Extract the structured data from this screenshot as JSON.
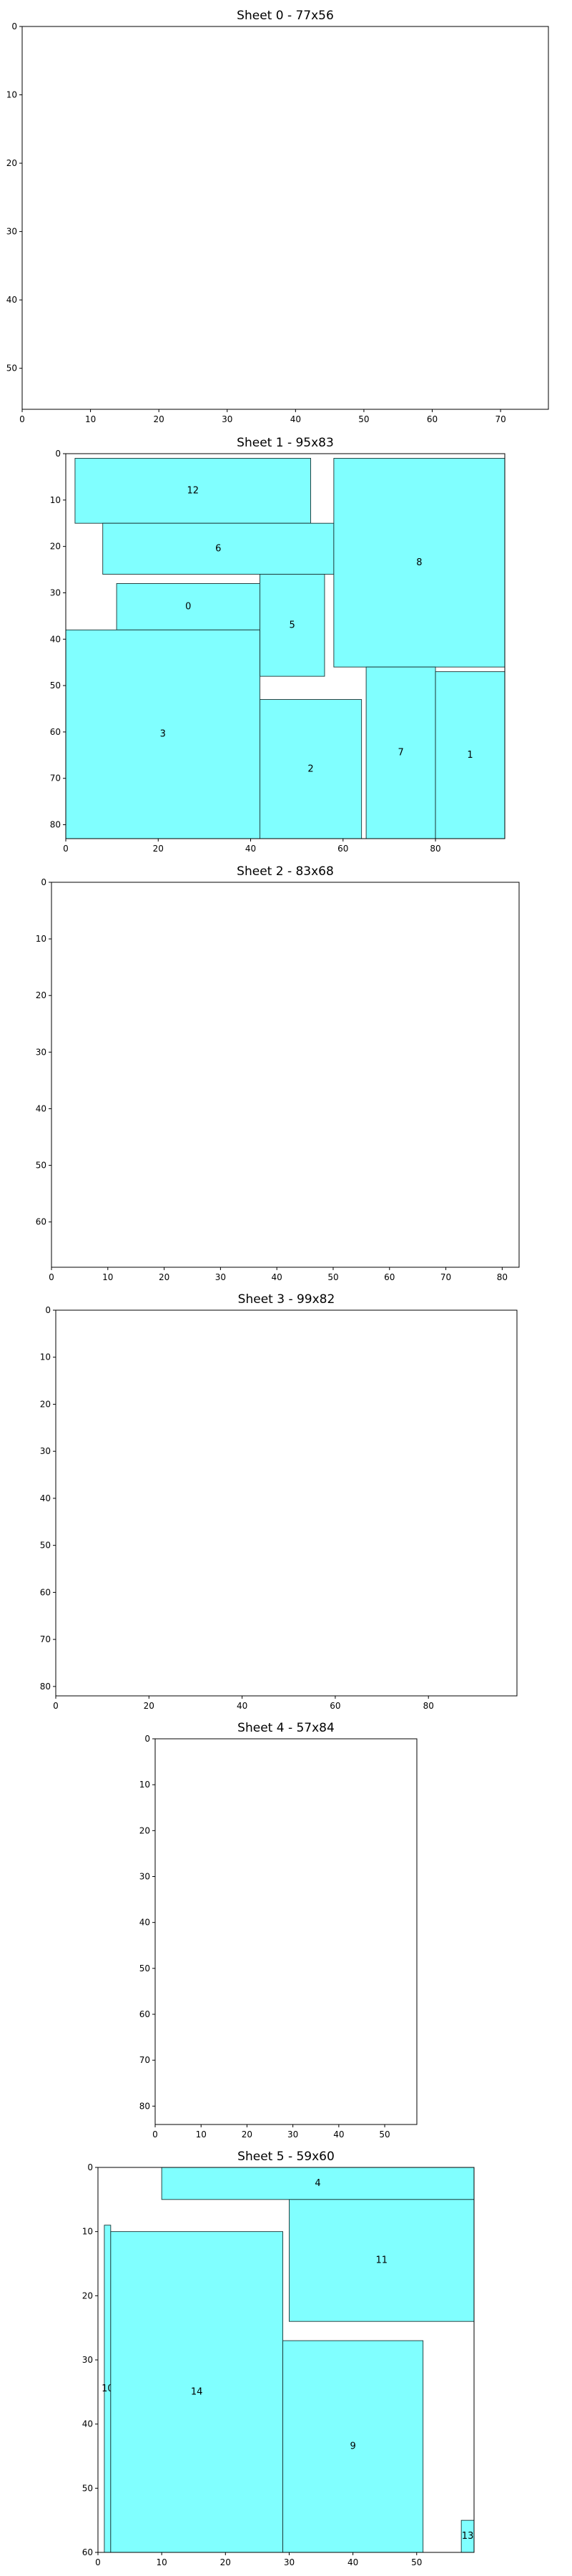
{
  "chart_data": [
    {
      "type": "rectangle-packing",
      "title": "Sheet 0 - 77x56",
      "xlim": [
        0,
        77
      ],
      "ylim": [
        56,
        0
      ],
      "x_ticks": [
        0,
        10,
        20,
        30,
        40,
        50,
        60,
        70
      ],
      "y_ticks": [
        0,
        10,
        20,
        30,
        40,
        50
      ],
      "rects": []
    },
    {
      "type": "rectangle-packing",
      "title": "Sheet 1 - 95x83",
      "xlim": [
        0,
        95
      ],
      "ylim": [
        83,
        0
      ],
      "x_ticks": [
        0,
        20,
        40,
        60,
        80
      ],
      "y_ticks": [
        0,
        10,
        20,
        30,
        40,
        50,
        60,
        70,
        80
      ],
      "rects": [
        {
          "label": "12",
          "x": 2,
          "y": 1,
          "w": 51,
          "h": 14
        },
        {
          "label": "6",
          "x": 8,
          "y": 15,
          "w": 50,
          "h": 11
        },
        {
          "label": "8",
          "x": 58,
          "y": 1,
          "w": 37,
          "h": 45
        },
        {
          "label": "0",
          "x": 11,
          "y": 28,
          "w": 31,
          "h": 10
        },
        {
          "label": "5",
          "x": 42,
          "y": 26,
          "w": 14,
          "h": 22
        },
        {
          "label": "3",
          "x": 0,
          "y": 38,
          "w": 42,
          "h": 45
        },
        {
          "label": "2",
          "x": 42,
          "y": 53,
          "w": 22,
          "h": 30
        },
        {
          "label": "7",
          "x": 65,
          "y": 46,
          "w": 15,
          "h": 37
        },
        {
          "label": "1",
          "x": 80,
          "y": 47,
          "w": 15,
          "h": 36
        }
      ]
    },
    {
      "type": "rectangle-packing",
      "title": "Sheet 2 - 83x68",
      "xlim": [
        0,
        83
      ],
      "ylim": [
        68,
        0
      ],
      "x_ticks": [
        0,
        10,
        20,
        30,
        40,
        50,
        60,
        70,
        80
      ],
      "y_ticks": [
        0,
        10,
        20,
        30,
        40,
        50,
        60
      ],
      "rects": []
    },
    {
      "type": "rectangle-packing",
      "title": "Sheet 3 - 99x82",
      "xlim": [
        0,
        99
      ],
      "ylim": [
        82,
        0
      ],
      "x_ticks": [
        0,
        20,
        40,
        60,
        80
      ],
      "y_ticks": [
        0,
        10,
        20,
        30,
        40,
        50,
        60,
        70,
        80
      ],
      "rects": []
    },
    {
      "type": "rectangle-packing",
      "title": "Sheet 4 - 57x84",
      "xlim": [
        0,
        57
      ],
      "ylim": [
        84,
        0
      ],
      "x_ticks": [
        0,
        10,
        20,
        30,
        40,
        50
      ],
      "y_ticks": [
        0,
        10,
        20,
        30,
        40,
        50,
        60,
        70,
        80
      ],
      "rects": []
    },
    {
      "type": "rectangle-packing",
      "title": "Sheet 5 - 59x60",
      "xlim": [
        0,
        59
      ],
      "ylim": [
        60,
        0
      ],
      "x_ticks": [
        0,
        10,
        20,
        30,
        40,
        50
      ],
      "y_ticks": [
        0,
        10,
        20,
        30,
        40,
        50,
        60
      ],
      "rects": [
        {
          "label": "4",
          "x": 10,
          "y": 0,
          "w": 49,
          "h": 5
        },
        {
          "label": "11",
          "x": 30,
          "y": 5,
          "w": 29,
          "h": 19
        },
        {
          "label": "10",
          "x": 1,
          "y": 9,
          "w": 1,
          "h": 51
        },
        {
          "label": "14",
          "x": 2,
          "y": 10,
          "w": 27,
          "h": 50
        },
        {
          "label": "9",
          "x": 29,
          "y": 27,
          "w": 22,
          "h": 33
        },
        {
          "label": "13",
          "x": 57,
          "y": 55,
          "w": 2,
          "h": 5
        }
      ]
    }
  ]
}
